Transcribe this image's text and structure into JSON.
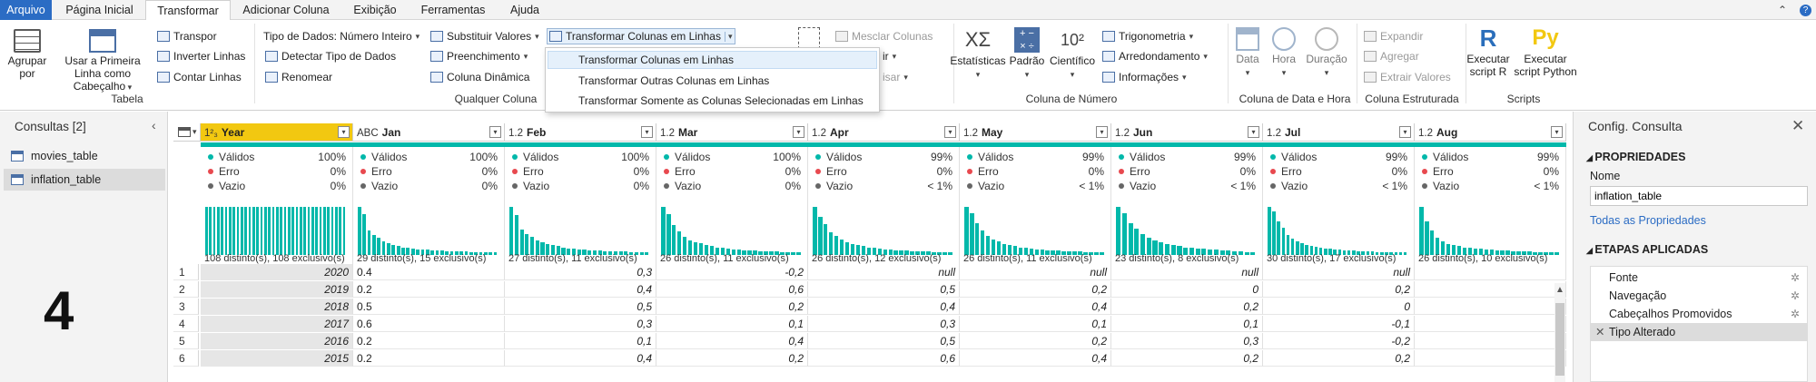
{
  "tabs": {
    "file": "Arquivo",
    "home": "Página Inicial",
    "transform": "Transformar",
    "add_column": "Adicionar Coluna",
    "view": "Exibição",
    "tools": "Ferramentas",
    "help": "Ajuda"
  },
  "ribbon": {
    "tabela": {
      "label": "Tabela",
      "group_by": "Agrupar por",
      "use_first_row": "Usar a Primeira Linha como Cabeçalho",
      "transpose": "Transpor",
      "reverse_rows": "Inverter Linhas",
      "count_rows": "Contar Linhas"
    },
    "qualquer_coluna": {
      "label": "Qualquer Coluna",
      "data_type": "Tipo de Dados: Número Inteiro",
      "detect_type": "Detectar Tipo de Dados",
      "rename": "Renomear",
      "replace_values": "Substituir Valores",
      "fill": "Preenchimento",
      "pivot": "Coluna Dinâmica",
      "unpivot": "Transformar Colunas em Linhas"
    },
    "texto": {
      "merge": "Mesclar Colunas",
      "extract_partial": "ir",
      "parse_partial": "isar"
    },
    "numero": {
      "label": "Coluna de Número",
      "statistics": "Estatísticas",
      "standard": "Padrão",
      "scientific": "Científico",
      "trig": "Trigonometria",
      "rounding": "Arredondamento",
      "information": "Informações"
    },
    "datahora": {
      "label": "Coluna de Data e Hora",
      "date": "Data",
      "time": "Hora",
      "duration": "Duração"
    },
    "estruturada": {
      "label": "Coluna Estruturada",
      "expand": "Expandir",
      "aggregate": "Agregar",
      "extract_values": "Extrair Valores"
    },
    "scripts": {
      "label": "Scripts",
      "run_r": "Executar script R",
      "run_python": "Executar script Python"
    }
  },
  "dropdown": {
    "items": [
      "Transformar Colunas em Linhas",
      "Transformar Outras Colunas em Linhas",
      "Transformar Somente as Colunas Selecionadas em Linhas"
    ]
  },
  "queries": {
    "header": "Consultas [2]",
    "items": [
      "movies_table",
      "inflation_table"
    ],
    "selected": 1
  },
  "overlay_number": "4",
  "grid": {
    "columns": [
      {
        "type": "1²₃",
        "name": "Year",
        "valid": "100%",
        "error": "0%",
        "empty": "0%",
        "distinct": "108 distinto(s), 108 exclusivo(s)",
        "hist": [
          10,
          10,
          10,
          10,
          10,
          10,
          10,
          10,
          10,
          10,
          10,
          10,
          10,
          10,
          10,
          10,
          10,
          10,
          10,
          10,
          10,
          10,
          10,
          10,
          10,
          10,
          10,
          10,
          10,
          10,
          10,
          10,
          10,
          10,
          10,
          10
        ]
      },
      {
        "type": "ABC",
        "name": "Jan",
        "valid": "100%",
        "error": "0%",
        "empty": "0%",
        "distinct": "29 distinto(s), 15 exclusivo(s)",
        "hist": [
          10,
          8.5,
          5,
          4.2,
          3.6,
          2.8,
          2.4,
          2,
          1.8,
          1.6,
          1.5,
          1.4,
          1.2,
          1.1,
          1.1,
          1,
          0.9,
          0.9,
          0.8,
          0.8,
          0.7,
          0.7,
          0.7,
          0.6,
          0.6,
          0.6,
          0.5,
          0.5,
          0.5
        ]
      },
      {
        "type": "1.2",
        "name": "Feb",
        "valid": "100%",
        "error": "0%",
        "empty": "0%",
        "distinct": "27 distinto(s), 11 exclusivo(s)",
        "hist": [
          10,
          8.3,
          5.2,
          4.4,
          3.8,
          3,
          2.6,
          2.2,
          2,
          1.8,
          1.6,
          1.4,
          1.3,
          1.2,
          1.1,
          1,
          0.9,
          0.9,
          0.8,
          0.8,
          0.7,
          0.7,
          0.7,
          0.6,
          0.6,
          0.5,
          0.5
        ]
      },
      {
        "type": "1.2",
        "name": "Mar",
        "valid": "100%",
        "error": "0%",
        "empty": "0%",
        "distinct": "26 distinto(s), 11 exclusivo(s)",
        "hist": [
          10,
          8.4,
          6.2,
          4.9,
          3.8,
          3,
          2.7,
          2.4,
          2,
          1.8,
          1.6,
          1.5,
          1.3,
          1.2,
          1.1,
          1,
          0.9,
          0.9,
          0.8,
          0.8,
          0.7,
          0.7,
          0.6,
          0.6,
          0.5,
          0.5
        ]
      },
      {
        "type": "1.2",
        "name": "Apr",
        "valid": "99%",
        "error": "0%",
        "empty": "< 1%",
        "distinct": "26 distinto(s), 12 exclusivo(s)",
        "hist": [
          10,
          8,
          6.4,
          4.8,
          4,
          3.2,
          2.7,
          2.3,
          2,
          1.8,
          1.6,
          1.5,
          1.3,
          1.2,
          1.1,
          1,
          0.9,
          0.9,
          0.8,
          0.8,
          0.7,
          0.7,
          0.6,
          0.6,
          0.5,
          0.5
        ]
      },
      {
        "type": "1.2",
        "name": "May",
        "valid": "99%",
        "error": "0%",
        "empty": "< 1%",
        "distinct": "26 distinto(s), 11 exclusivo(s)",
        "hist": [
          10,
          8.6,
          6.6,
          5,
          4,
          3.3,
          2.8,
          2.3,
          2,
          1.8,
          1.6,
          1.5,
          1.3,
          1.2,
          1.1,
          1,
          0.9,
          0.9,
          0.8,
          0.8,
          0.7,
          0.7,
          0.6,
          0.6,
          0.5,
          0.5
        ]
      },
      {
        "type": "1.2",
        "name": "Jun",
        "valid": "99%",
        "error": "0%",
        "empty": "< 1%",
        "distinct": "23 distinto(s), 8 exclusivo(s)",
        "hist": [
          10,
          8.6,
          6.6,
          5.4,
          4.4,
          3.6,
          3,
          2.6,
          2.2,
          2,
          1.8,
          1.6,
          1.5,
          1.4,
          1.3,
          1.2,
          1.1,
          1,
          0.9,
          0.8,
          0.7,
          0.6,
          0.5
        ]
      },
      {
        "type": "1.2",
        "name": "Jul",
        "valid": "99%",
        "error": "0%",
        "empty": "< 1%",
        "distinct": "30 distinto(s), 17 exclusivo(s)",
        "hist": [
          10,
          9,
          7,
          5.6,
          4.2,
          3.4,
          2.8,
          2.4,
          2.1,
          1.9,
          1.7,
          1.5,
          1.4,
          1.3,
          1.2,
          1.1,
          1,
          0.9,
          0.9,
          0.8,
          0.8,
          0.7,
          0.7,
          0.6,
          0.6,
          0.6,
          0.5,
          0.5,
          0.5,
          0.5
        ]
      },
      {
        "type": "1.2",
        "name": "Aug",
        "valid": "99%",
        "error": "0%",
        "empty": "< 1%",
        "distinct": "26 distinto(s), 10 exclusivo(s)",
        "hist": [
          10,
          7,
          5,
          3.6,
          2.8,
          2.3,
          2,
          1.8,
          1.6,
          1.5,
          1.4,
          1.3,
          1.2,
          1.1,
          1,
          0.9,
          0.9,
          0.8,
          0.8,
          0.7,
          0.7,
          0.6,
          0.6,
          0.6,
          0.5,
          0.5
        ]
      }
    ],
    "stat_labels": {
      "valid": "Válidos",
      "error": "Erro",
      "empty": "Vazio"
    },
    "rows": [
      [
        "1",
        "2020",
        "0.4",
        "0,3",
        "-0,2",
        "null",
        "null",
        "null",
        "null",
        ""
      ],
      [
        "2",
        "2019",
        "0.2",
        "0,4",
        "0,6",
        "0,5",
        "0,2",
        "0",
        "0,2",
        ""
      ],
      [
        "3",
        "2018",
        "0.5",
        "0,5",
        "0,2",
        "0,4",
        "0,4",
        "0,2",
        "0",
        ""
      ],
      [
        "4",
        "2017",
        "0.6",
        "0,3",
        "0,1",
        "0,3",
        "0,1",
        "0,1",
        "-0,1",
        ""
      ],
      [
        "5",
        "2016",
        "0.2",
        "0,1",
        "0,4",
        "0,5",
        "0,2",
        "0,3",
        "-0,2",
        ""
      ],
      [
        "6",
        "2015",
        "0.2",
        "0,4",
        "0,2",
        "0,6",
        "0,4",
        "0,2",
        "0,2",
        ""
      ]
    ]
  },
  "settings": {
    "title": "Config. Consulta",
    "properties": "PROPRIEDADES",
    "name_label": "Nome",
    "name_value": "inflation_table",
    "all_props": "Todas as Propriedades",
    "applied_steps": "ETAPAS APLICADAS",
    "steps": [
      "Fonte",
      "Navegação",
      "Cabeçalhos Promovidos",
      "Tipo Alterado"
    ],
    "selected_step": 3
  },
  "colors": {
    "accent": "#2b6cc4",
    "teal": "#01b8aa",
    "year_header": "#f2c811",
    "valid_dot": "#01b8aa",
    "error_dot": "#e8494f",
    "empty_dot": "#666666"
  }
}
